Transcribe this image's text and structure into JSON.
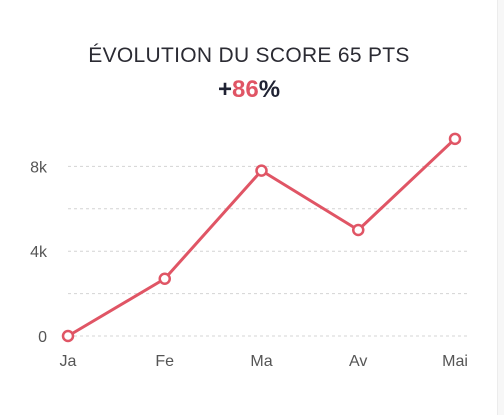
{
  "header": {
    "title": "ÉVOLUTION DU SCORE 65 PTS",
    "delta_sign": "+",
    "delta_value": "86",
    "delta_unit": "%"
  },
  "colors": {
    "line": "#e05565",
    "text_dark": "#1f2233",
    "grid": "#d4d4d4"
  },
  "chart_data": {
    "type": "line",
    "categories": [
      "Ja",
      "Fe",
      "Ma",
      "Av",
      "Mai"
    ],
    "values": [
      0,
      2700,
      7800,
      5000,
      9300
    ],
    "ylim": [
      0,
      10000
    ],
    "yticks": [
      0,
      4000,
      8000
    ],
    "ytick_labels": [
      "0",
      "4k",
      "8k"
    ],
    "grid": true,
    "grid_style": "dashed",
    "markers": "hollow-circle",
    "title": "",
    "xlabel": "",
    "ylabel": ""
  }
}
